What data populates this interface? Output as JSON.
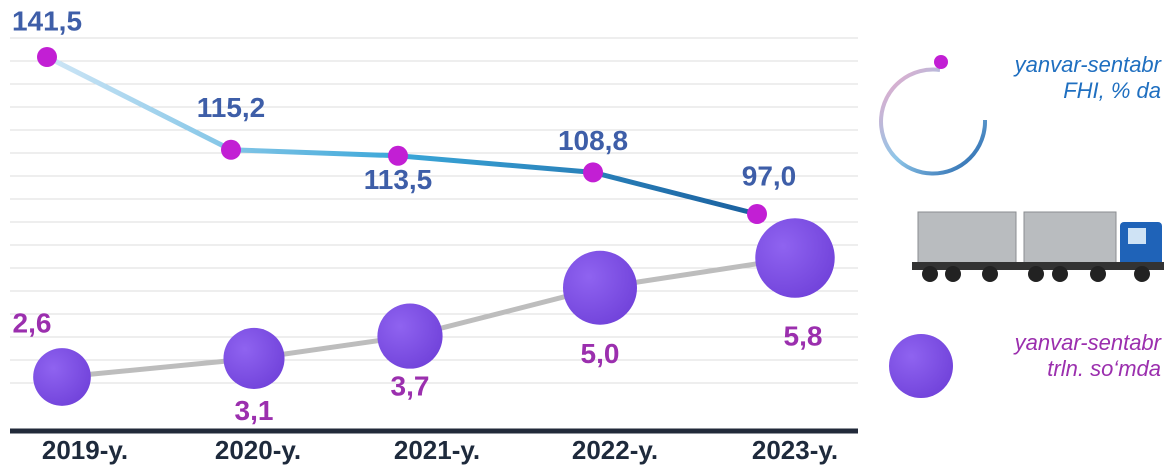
{
  "chart_data": {
    "type": "line-bubble",
    "categories": [
      "2019-y.",
      "2020-y.",
      "2021-y.",
      "2022-y.",
      "2023-y."
    ],
    "series": [
      {
        "name": "yanvar-sentabr\nFHI, % da",
        "type": "line",
        "color": "#c21fd4",
        "values": [
          141.5,
          115.2,
          113.5,
          108.8,
          97.0
        ],
        "value_labels": [
          "141,5",
          "115,2",
          "113,5",
          "108,8",
          "97,0"
        ]
      },
      {
        "name": "yanvar-sentabr\ntrln. so‘mda",
        "type": "bubble",
        "color": "#7d52e6",
        "values": [
          2.6,
          3.1,
          3.7,
          5.0,
          5.8
        ],
        "value_labels": [
          "2,6",
          "3,1",
          "3,7",
          "5,0",
          "5,8"
        ]
      }
    ],
    "grid": true
  }
}
